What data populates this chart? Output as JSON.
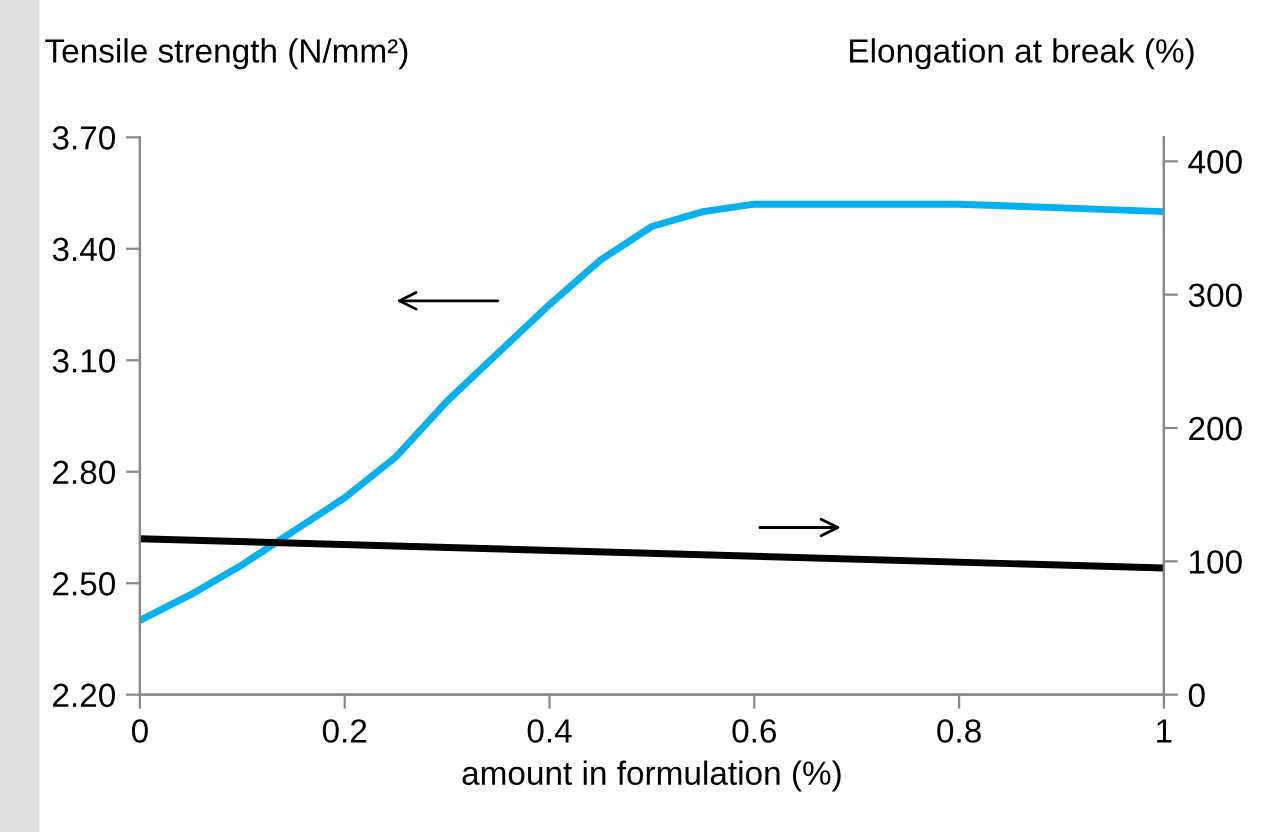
{
  "chart_data": {
    "type": "line",
    "ylabel": "Tensile strength (N/mm²)",
    "y2label": "Elongation at break (%)",
    "xlabel": "amount in formulation (%)",
    "x": [
      0,
      0.05,
      0.1,
      0.15,
      0.2,
      0.25,
      0.3,
      0.35,
      0.4,
      0.45,
      0.5,
      0.55,
      0.6,
      0.65,
      0.7,
      0.8,
      0.9,
      1
    ],
    "series": [
      {
        "color": "#00b0f0",
        "values": [
          2.4,
          2.47,
          2.55,
          2.64,
          2.73,
          2.84,
          2.99,
          3.12,
          3.25,
          3.37,
          3.46,
          3.5,
          3.52,
          3.52,
          3.52,
          3.52,
          3.51,
          3.5
        ]
      },
      {
        "color": "#000000",
        "axis": "y2",
        "x": [
          0,
          1
        ],
        "values": [
          117,
          95
        ]
      }
    ],
    "xlim": [
      0,
      1
    ],
    "xticks": [
      0,
      0.2,
      0.4,
      0.6,
      0.8,
      1
    ],
    "ylim": [
      2.2,
      3.7
    ],
    "yticks": [
      {
        "value": 2.2,
        "label": "2.20"
      },
      {
        "value": 2.5,
        "label": "2.50"
      },
      {
        "value": 2.8,
        "label": "2.80"
      },
      {
        "value": 3.1,
        "label": "3.10"
      },
      {
        "value": 3.4,
        "label": "3.40"
      },
      {
        "value": 3.7,
        "label": "3.70"
      }
    ],
    "y2lim": [
      0,
      418
    ],
    "y2ticks": [
      0,
      100,
      200,
      300,
      400
    ],
    "grid": false,
    "legend": false,
    "marker": "none",
    "line_style": "solid"
  }
}
